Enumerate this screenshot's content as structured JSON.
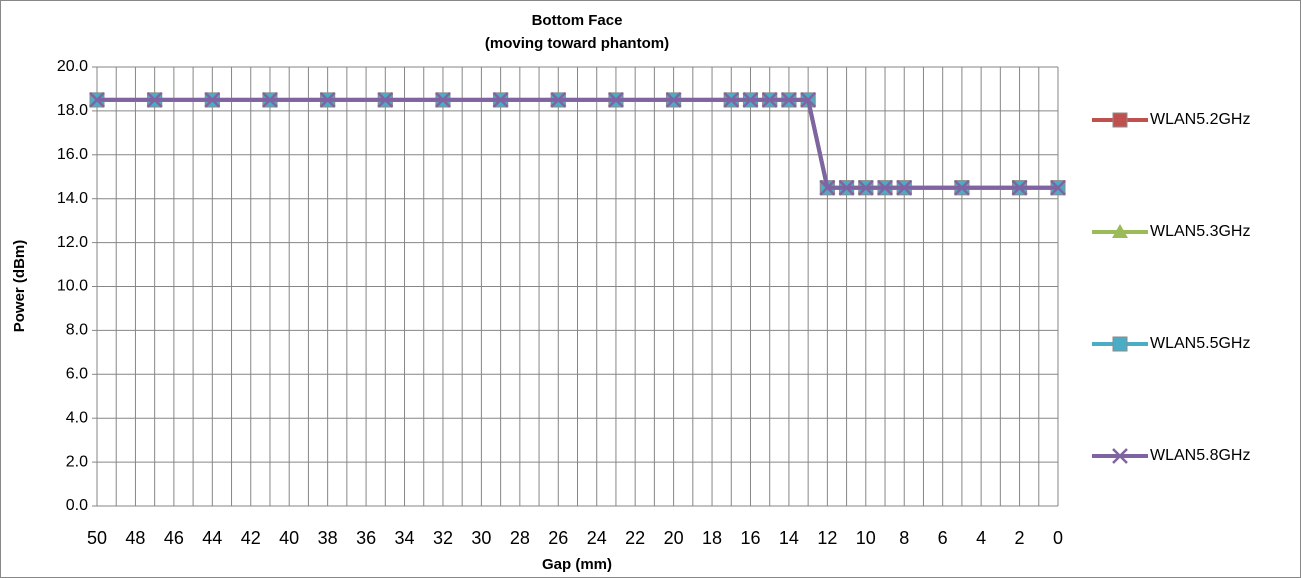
{
  "chart_data": {
    "type": "line",
    "title": "Bottom Face",
    "subtitle": "(moving toward phantom)",
    "x_label": "Gap (mm)",
    "y_label": "Power (dBm)",
    "x": [
      50,
      47,
      44,
      41,
      38,
      35,
      32,
      29,
      26,
      23,
      20,
      17,
      16,
      15,
      14,
      13,
      12,
      11,
      10,
      9,
      8,
      5,
      2,
      0
    ],
    "series": [
      {
        "name": "WLAN5.2GHz",
        "color": "#c0504d",
        "marker": "square",
        "values": [
          18.5,
          18.5,
          18.5,
          18.5,
          18.5,
          18.5,
          18.5,
          18.5,
          18.5,
          18.5,
          18.5,
          18.5,
          18.5,
          18.5,
          18.5,
          18.5,
          14.5,
          14.5,
          14.5,
          14.5,
          14.5,
          14.5,
          14.5,
          14.5
        ]
      },
      {
        "name": "WLAN5.3GHz",
        "color": "#9bbb59",
        "marker": "triangle",
        "values": [
          18.5,
          18.5,
          18.5,
          18.5,
          18.5,
          18.5,
          18.5,
          18.5,
          18.5,
          18.5,
          18.5,
          18.5,
          18.5,
          18.5,
          18.5,
          18.5,
          14.5,
          14.5,
          14.5,
          14.5,
          14.5,
          14.5,
          14.5,
          14.5
        ]
      },
      {
        "name": "WLAN5.5GHz",
        "color": "#4bacc6",
        "marker": "square",
        "values": [
          18.5,
          18.5,
          18.5,
          18.5,
          18.5,
          18.5,
          18.5,
          18.5,
          18.5,
          18.5,
          18.5,
          18.5,
          18.5,
          18.5,
          18.5,
          18.5,
          14.5,
          14.5,
          14.5,
          14.5,
          14.5,
          14.5,
          14.5,
          14.5
        ]
      },
      {
        "name": "WLAN5.8GHz",
        "color": "#8064a2",
        "marker": "x",
        "values": [
          18.5,
          18.5,
          18.5,
          18.5,
          18.5,
          18.5,
          18.5,
          18.5,
          18.5,
          18.5,
          18.5,
          18.5,
          18.5,
          18.5,
          18.5,
          18.5,
          14.5,
          14.5,
          14.5,
          14.5,
          14.5,
          14.5,
          14.5,
          14.5
        ]
      }
    ],
    "xlim": [
      50,
      0
    ],
    "xticks": [
      50,
      48,
      46,
      44,
      42,
      40,
      38,
      36,
      34,
      32,
      30,
      28,
      26,
      24,
      22,
      20,
      18,
      16,
      14,
      12,
      10,
      8,
      6,
      4,
      2,
      0
    ],
    "x_minor_ticks": [
      49,
      47,
      45,
      43,
      41,
      39,
      37,
      35,
      33,
      31,
      29,
      27,
      25,
      23,
      21,
      19,
      17,
      15,
      13,
      11,
      9,
      7,
      5,
      3,
      1
    ],
    "ylim": [
      0,
      20
    ],
    "yticks": [
      {
        "value": 0,
        "label": "0.0"
      },
      {
        "value": 2,
        "label": "2.0"
      },
      {
        "value": 4,
        "label": "4.0"
      },
      {
        "value": 6,
        "label": "6.0"
      },
      {
        "value": 8,
        "label": "8.0"
      },
      {
        "value": 10,
        "label": "10.0"
      },
      {
        "value": 12,
        "label": "12.0"
      },
      {
        "value": 14,
        "label": "14.0"
      },
      {
        "value": 16,
        "label": "16.0"
      },
      {
        "value": 18,
        "label": "18.0"
      },
      {
        "value": 20,
        "label": "20.0"
      }
    ],
    "grid": true,
    "legend": "right"
  }
}
